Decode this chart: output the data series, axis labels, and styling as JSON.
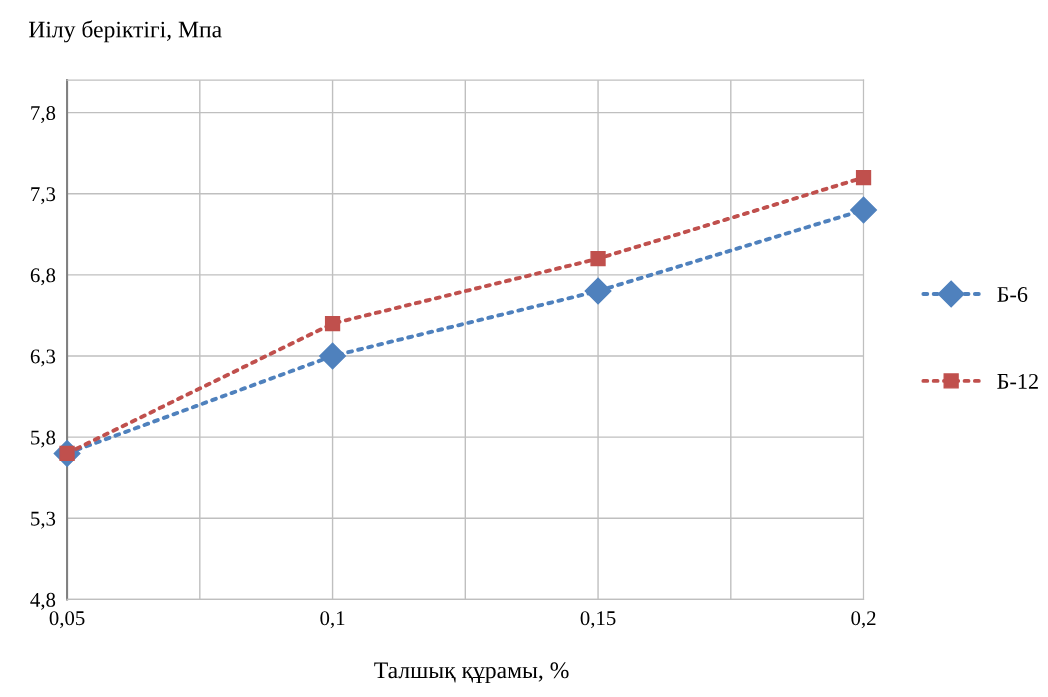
{
  "chart_data": {
    "type": "line",
    "ylabel": "Иілу беріктігі, Мпа",
    "xlabel": "Талшық құрамы, %",
    "x": [
      0.05,
      0.1,
      0.15,
      0.2
    ],
    "series": [
      {
        "name": "Б-6",
        "color": "#4f81bd",
        "values": [
          5.7,
          6.3,
          6.7,
          7.2
        ],
        "marker": "diamond"
      },
      {
        "name": "Б-12",
        "color": "#c0504d",
        "values": [
          5.7,
          6.5,
          6.9,
          7.4
        ],
        "marker": "square"
      }
    ],
    "xlim": [
      0.05,
      0.2
    ],
    "xticks": [
      {
        "value": 0.05,
        "label": "0,05"
      },
      {
        "value": 0.075,
        "label": null
      },
      {
        "value": 0.1,
        "label": "0,1"
      },
      {
        "value": 0.125,
        "label": null
      },
      {
        "value": 0.15,
        "label": "0,15"
      },
      {
        "value": 0.175,
        "label": null
      },
      {
        "value": 0.2,
        "label": "0,2"
      }
    ],
    "ylim": [
      4.8,
      8.0
    ],
    "yticks": [
      {
        "value": 4.8,
        "label": "4,8"
      },
      {
        "value": 5.3,
        "label": "5,3"
      },
      {
        "value": 5.8,
        "label": "5,8"
      },
      {
        "value": 6.3,
        "label": "6,3"
      },
      {
        "value": 6.8,
        "label": "6,8"
      },
      {
        "value": 7.3,
        "label": "7,3"
      },
      {
        "value": 7.8,
        "label": "7,8"
      }
    ],
    "grid": true,
    "legend": "right",
    "line_style": "dotted"
  }
}
